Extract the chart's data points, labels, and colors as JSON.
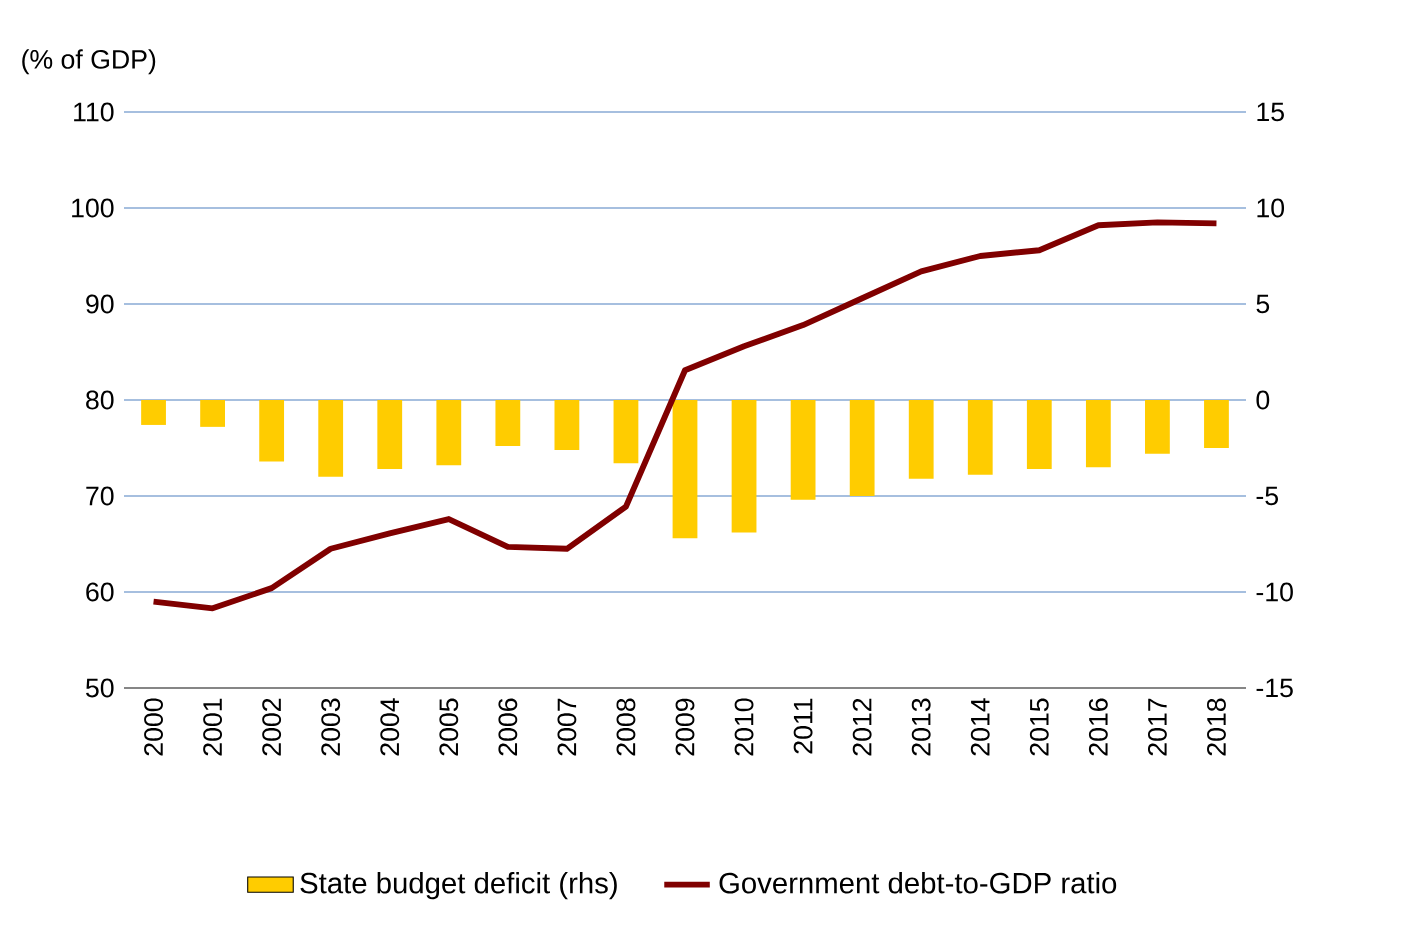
{
  "chart_data": {
    "type": "bar",
    "ylabel": "(% of GDP)",
    "categories": [
      "2000",
      "2001",
      "2002",
      "2003",
      "2004",
      "2005",
      "2006",
      "2007",
      "2008",
      "2009",
      "2010",
      "2011",
      "2012",
      "2013",
      "2014",
      "2015",
      "2016",
      "2017",
      "2018"
    ],
    "series": [
      {
        "name": "State budget deficit (rhs)",
        "axis": "y2",
        "color": "#ffcc00",
        "values": [
          -1.3,
          -1.4,
          -3.2,
          -4.0,
          -3.6,
          -3.4,
          -2.4,
          -2.6,
          -3.3,
          -7.2,
          -6.9,
          -5.2,
          -5.0,
          -4.1,
          -3.9,
          -3.6,
          -3.5,
          -2.8,
          -2.5
        ]
      },
      {
        "name": "Government debt-to-GDP ratio",
        "type": "line",
        "color": "#800000",
        "values": [
          59.0,
          58.3,
          60.4,
          64.5,
          66.1,
          67.6,
          64.7,
          64.5,
          68.9,
          83.1,
          85.6,
          87.8,
          90.6,
          93.4,
          95.0,
          95.6,
          98.2,
          98.5,
          98.4
        ]
      }
    ],
    "ylim": [
      50,
      110
    ],
    "yticks": [
      50,
      60,
      70,
      80,
      90,
      100,
      110
    ],
    "y2lim": [
      -15,
      15
    ],
    "y2ticks": [
      -15,
      -10,
      -5,
      0,
      5,
      10,
      15
    ],
    "grid": "y",
    "legend": "bottom",
    "marker": "none",
    "line_style": "solid"
  }
}
